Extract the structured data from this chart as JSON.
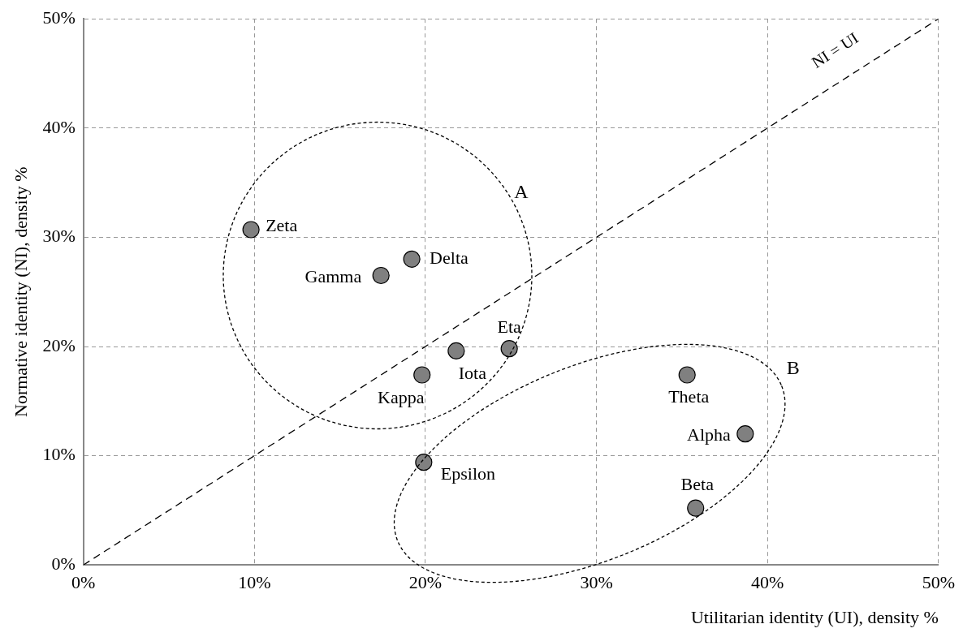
{
  "chart_data": {
    "type": "scatter",
    "xlabel": "Utilitarian identity (UI), density %",
    "ylabel": "Normative identity (NI), density %",
    "xlim": [
      0,
      50
    ],
    "ylim": [
      0,
      50
    ],
    "xticks": [
      {
        "value": 0,
        "label": "0%"
      },
      {
        "value": 10,
        "label": "10%"
      },
      {
        "value": 20,
        "label": "20%"
      },
      {
        "value": 30,
        "label": "30%"
      },
      {
        "value": 40,
        "label": "40%"
      },
      {
        "value": 50,
        "label": "50%"
      }
    ],
    "yticks": [
      {
        "value": 0,
        "label": "0%"
      },
      {
        "value": 10,
        "label": "10%"
      },
      {
        "value": 20,
        "label": "20%"
      },
      {
        "value": 30,
        "label": "30%"
      },
      {
        "value": 40,
        "label": "40%"
      },
      {
        "value": 50,
        "label": "50%"
      }
    ],
    "grid": true,
    "legend": false,
    "marker": "circle",
    "series": [
      {
        "type": "line",
        "color": "#000000",
        "line_style": "dashed",
        "marker": "none",
        "x": [
          0,
          50
        ],
        "values": [
          0,
          50
        ]
      },
      {
        "name": "Zeta",
        "color": "#808080",
        "x": [
          9.8
        ],
        "values": [
          30.7
        ]
      },
      {
        "name": "Delta",
        "color": "#808080",
        "x": [
          19.2
        ],
        "values": [
          28.0
        ]
      },
      {
        "name": "Gamma",
        "color": "#808080",
        "x": [
          17.4
        ],
        "values": [
          26.5
        ]
      },
      {
        "name": "Kappa",
        "color": "#808080",
        "x": [
          19.8
        ],
        "values": [
          17.4
        ]
      },
      {
        "name": "Iota",
        "color": "#808080",
        "x": [
          21.8
        ],
        "values": [
          19.6
        ]
      },
      {
        "name": "Epsilon",
        "color": "#808080",
        "x": [
          19.9
        ],
        "values": [
          9.4
        ]
      },
      {
        "name": "Eta",
        "color": "#808080",
        "x": [
          24.9
        ],
        "values": [
          19.8
        ]
      },
      {
        "name": "Theta",
        "color": "#808080",
        "x": [
          35.3
        ],
        "values": [
          17.4
        ]
      },
      {
        "name": "Alpha",
        "color": "#808080",
        "x": [
          38.7
        ],
        "values": [
          12.0
        ]
      },
      {
        "name": "Beta",
        "color": "#808080",
        "x": [
          35.8
        ],
        "values": [
          5.2
        ]
      }
    ],
    "annotations": [
      "NI = UI",
      "A",
      "B"
    ]
  }
}
